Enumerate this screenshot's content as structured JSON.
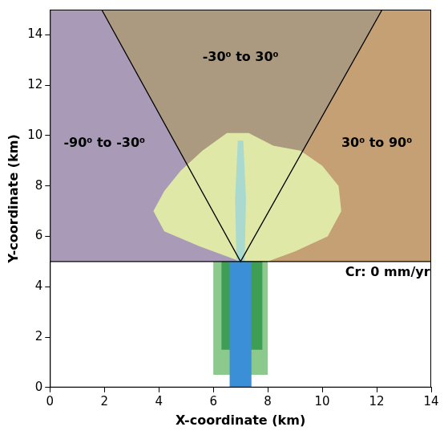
{
  "chart_data": {
    "type": "scatter",
    "x_label": "X-coordinate (km)",
    "y_label": "Y-coordinate (km)",
    "xlim": [
      0,
      14
    ],
    "ylim": [
      0,
      15
    ],
    "xticks": [
      0,
      2,
      4,
      6,
      8,
      10,
      12,
      14
    ],
    "yticks": [
      0,
      2,
      4,
      6,
      8,
      10,
      12,
      14
    ],
    "grid": false,
    "regions": [
      {
        "color": "#a99ab8",
        "x": [
          0,
          7,
          1.9,
          0
        ],
        "y": [
          5,
          5,
          15,
          15
        ]
      },
      {
        "color": "#ab9a80",
        "x": [
          7,
          1.9,
          12.2
        ],
        "y": [
          5,
          15,
          15
        ]
      },
      {
        "color": "#c4a074",
        "x": [
          7,
          12.2,
          14,
          14
        ],
        "y": [
          5,
          15,
          15,
          5
        ]
      }
    ],
    "features": [
      {
        "color": "#dfe8a6",
        "x": [
          7,
          5.5,
          4.2,
          3.8,
          4.2,
          4.8,
          5.6,
          6.5,
          7.3,
          8.2,
          9.2,
          10.0,
          10.6,
          10.7,
          10.2,
          9.0,
          8.0
        ],
        "y": [
          5,
          5.6,
          6.2,
          7.0,
          7.8,
          8.6,
          9.4,
          10.1,
          10.1,
          9.6,
          9.4,
          8.8,
          8.0,
          7.0,
          6.0,
          5.4,
          5.0
        ]
      },
      {
        "color": "#a9d9cf",
        "x": [
          6.85,
          6.8,
          6.9,
          7.1,
          7.2,
          7.15
        ],
        "y": [
          5,
          7.5,
          9.8,
          9.8,
          7.5,
          5
        ]
      },
      {
        "color": "#8cc98c",
        "x": [
          6.0,
          8.0,
          8.0,
          6.0
        ],
        "y": [
          0.5,
          0.5,
          5,
          5
        ]
      },
      {
        "color": "#3f9e55",
        "x": [
          6.3,
          7.8,
          7.8,
          6.3
        ],
        "y": [
          1.5,
          1.5,
          5,
          5
        ]
      },
      {
        "color": "#3b8fd6",
        "x": [
          6.6,
          7.4,
          7.4,
          6.6
        ],
        "y": [
          0,
          0,
          5,
          5
        ]
      }
    ],
    "lines": [
      {
        "x": [
          0,
          14
        ],
        "y": [
          5,
          5
        ]
      },
      {
        "x": [
          1.9,
          7,
          12.2
        ],
        "y": [
          15,
          5,
          15
        ]
      }
    ],
    "annotations": [
      {
        "text": "-30⁰ to 30⁰",
        "x": 7,
        "y": 13.1
      },
      {
        "text": "-90⁰ to -30⁰",
        "x": 2.0,
        "y": 9.7
      },
      {
        "text": "30⁰ to 90⁰",
        "x": 12.0,
        "y": 9.7
      },
      {
        "text": "Cr: 0 mm/yr",
        "x": 12.4,
        "y": 4.55
      }
    ]
  }
}
